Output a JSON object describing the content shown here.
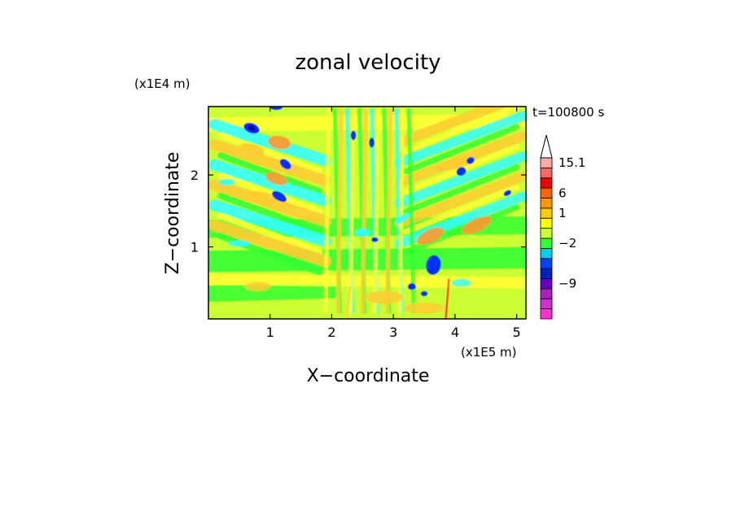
{
  "chart_data": {
    "type": "heatmap",
    "title": "zonal velocity",
    "xlabel": "X−coordinate",
    "ylabel": "Z−coordinate",
    "x_scale_label": "(x1E5 m)",
    "y_scale_label": "(x1E4 m)",
    "time_label": "t=100800 s",
    "xlim": [
      0,
      5.15
    ],
    "ylim": [
      0,
      2.95
    ],
    "x_ticks": [
      {
        "value": 1,
        "label": "1"
      },
      {
        "value": 2,
        "label": "2"
      },
      {
        "value": 3,
        "label": "3"
      },
      {
        "value": 4,
        "label": "4"
      },
      {
        "value": 5,
        "label": "5"
      }
    ],
    "y_ticks": [
      {
        "value": 1,
        "label": "1"
      },
      {
        "value": 2,
        "label": "2"
      }
    ],
    "colorbar": {
      "colors": [
        "#ff33cc",
        "#cc33cc",
        "#aa22bb",
        "#6600bb",
        "#0022bb",
        "#0044ff",
        "#00ccee",
        "#33ff33",
        "#ccff33",
        "#ffff00",
        "#ffcc00",
        "#ff9900",
        "#ff6600",
        "#ee0000",
        "#ff6666",
        "#ffaaaa"
      ],
      "labels": [
        {
          "value": "15.1",
          "level_index": 15
        },
        {
          "value": "6",
          "level_index": 12
        },
        {
          "value": "1",
          "level_index": 10
        },
        {
          "value": "−2",
          "level_index": 7
        },
        {
          "value": "−9",
          "level_index": 3
        }
      ],
      "extend_top": true
    },
    "palette": {
      "background_field": "#33ff33",
      "yellow": "#ffff33",
      "orange": "#ffcc33",
      "dark_orange": "#ff9933",
      "cyan": "#33ffff",
      "blue": "#0033ff",
      "dark_blue": "#000099",
      "red": "#ff3300"
    }
  }
}
